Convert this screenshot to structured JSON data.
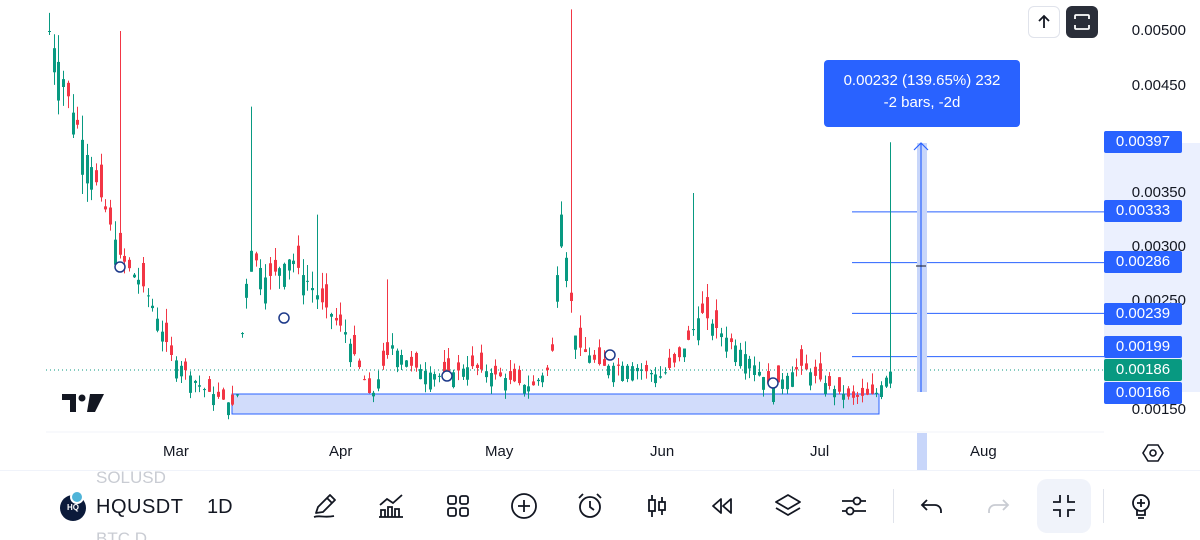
{
  "chart": {
    "price_axis": [
      "0.00500",
      "0.00450",
      "0.00350",
      "0.00300",
      "0.00250",
      "0.00150"
    ],
    "time_axis": [
      "Mar",
      "Apr",
      "May",
      "Jun",
      "Jul",
      "Aug"
    ],
    "price_tags": {
      "measure_high": "0.00397",
      "level_1": "0.00333",
      "level_2": "0.00286",
      "level_3": "0.00239",
      "level_4": "0.00199",
      "current": "0.00186",
      "measure_low": "0.00166"
    },
    "measure_tooltip": {
      "line1": "0.00232 (139.65%) 232",
      "line2": "-2 bars, -2d"
    },
    "colors": {
      "up": "#089981",
      "down": "#f23645",
      "accent": "#2962ff",
      "zone_fill": "#d1dcfb"
    }
  },
  "toolbar": {
    "ghost_symbol_above": "SOLUSD",
    "symbol": "HQUSDT",
    "symbol_avatar_text": "HQ",
    "ghost_symbol_below": "BTC D",
    "interval": "1D",
    "icons": [
      "pencil-icon",
      "indicators-icon",
      "grid-icon",
      "plus-circle-icon",
      "alarm-clock-icon",
      "candles-icon",
      "replay-icon",
      "layers-icon",
      "sliders-icon",
      "undo-icon",
      "redo-icon",
      "collapse-icon",
      "lightbulb-icon"
    ]
  },
  "top_buttons": [
    "arrow-up-icon",
    "fullscreen-icon"
  ]
}
